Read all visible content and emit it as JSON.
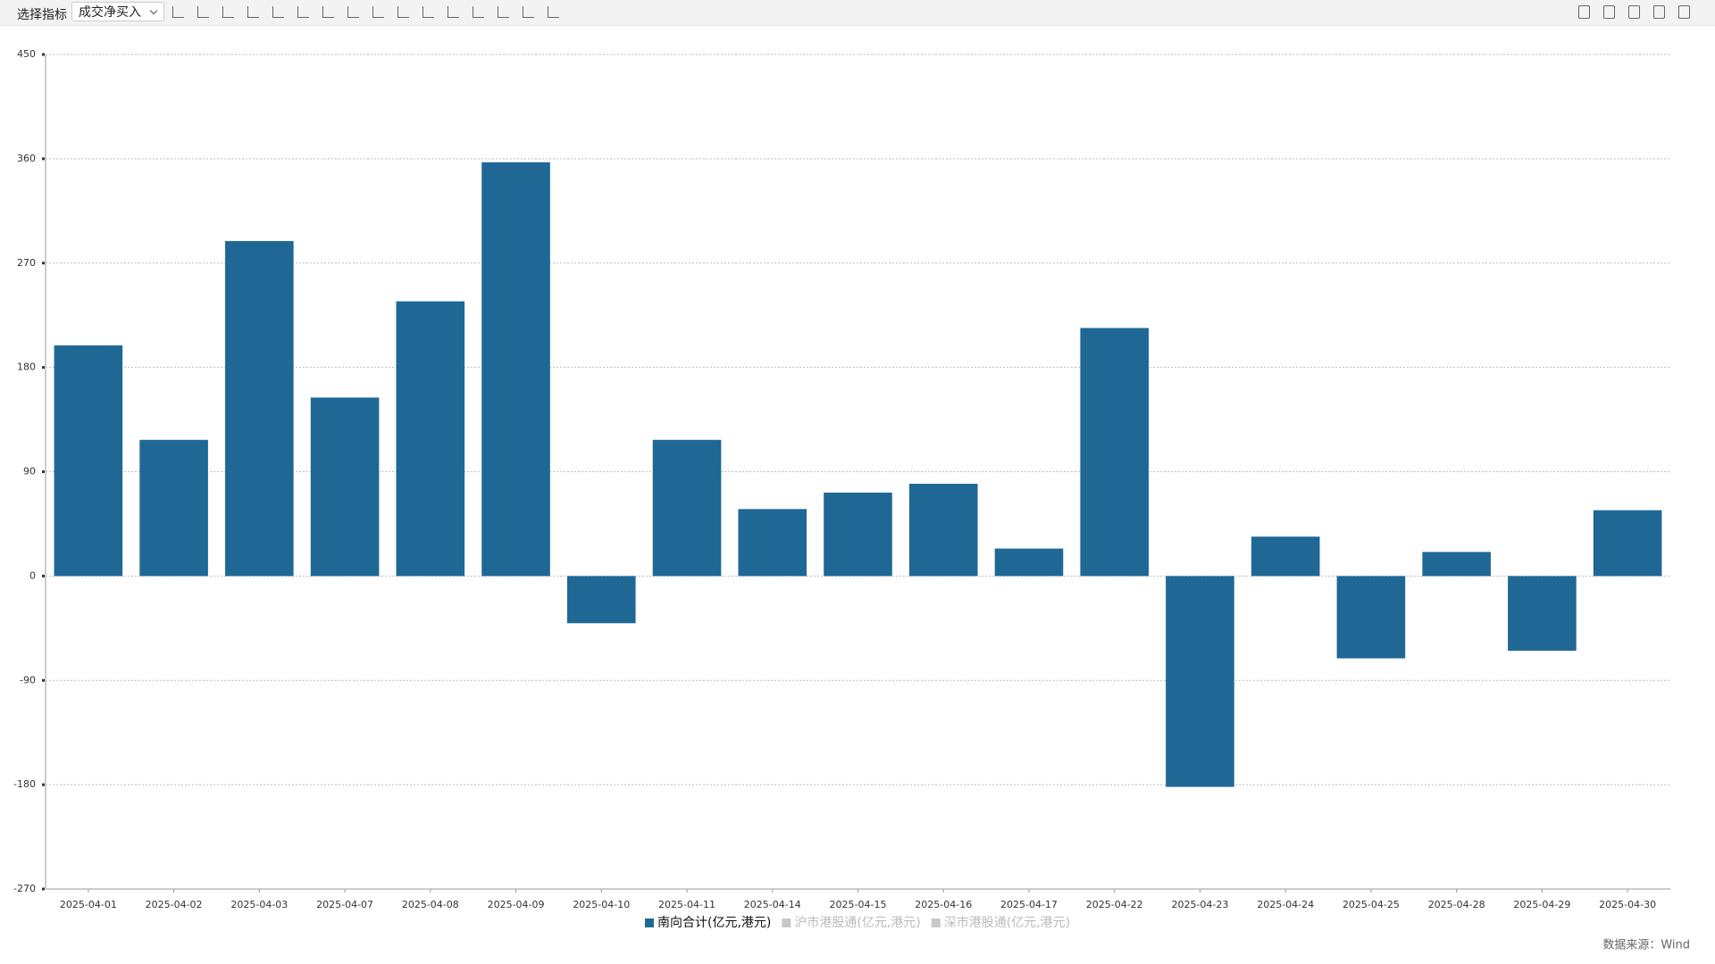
{
  "toolbar": {
    "label": "选择指标",
    "dropdown": "成交净买入"
  },
  "chart_data": {
    "type": "bar",
    "categories": [
      "2025-04-01",
      "2025-04-02",
      "2025-04-03",
      "2025-04-07",
      "2025-04-08",
      "2025-04-09",
      "2025-04-10",
      "2025-04-11",
      "2025-04-14",
      "2025-04-15",
      "2025-04-16",
      "2025-04-17",
      "2025-04-22",
      "2025-04-23",
      "2025-04-24",
      "2025-04-25",
      "2025-04-28",
      "2025-04-29",
      "2025-04-30"
    ],
    "series": [
      {
        "name": "南向合计(亿元,港元)",
        "color": "#1f6896",
        "visible": true,
        "values": [
          199,
          117.5,
          289,
          154,
          237,
          357,
          -40.7,
          117.5,
          57.8,
          72,
          79.6,
          23.7,
          214,
          -181.9,
          34,
          -71,
          20.8,
          -64.4,
          56.8
        ]
      },
      {
        "name": "沪市港股通(亿元,港元)",
        "color": "#c8c8c8",
        "visible": false,
        "values": [
          null,
          null,
          null,
          null,
          null,
          null,
          null,
          null,
          null,
          null,
          null,
          null,
          null,
          null,
          null,
          null,
          null,
          null,
          null
        ]
      },
      {
        "name": "深市港股通(亿元,港元)",
        "color": "#c8c8c8",
        "visible": false,
        "values": [
          null,
          null,
          null,
          null,
          null,
          null,
          null,
          null,
          null,
          null,
          null,
          null,
          null,
          null,
          null,
          null,
          null,
          null,
          null
        ]
      }
    ],
    "ylim": [
      -270,
      450
    ],
    "yticks": [
      450,
      360,
      270,
      180,
      90,
      0,
      -90,
      -180,
      -270
    ],
    "grid": true,
    "source": "数据来源：Wind"
  }
}
